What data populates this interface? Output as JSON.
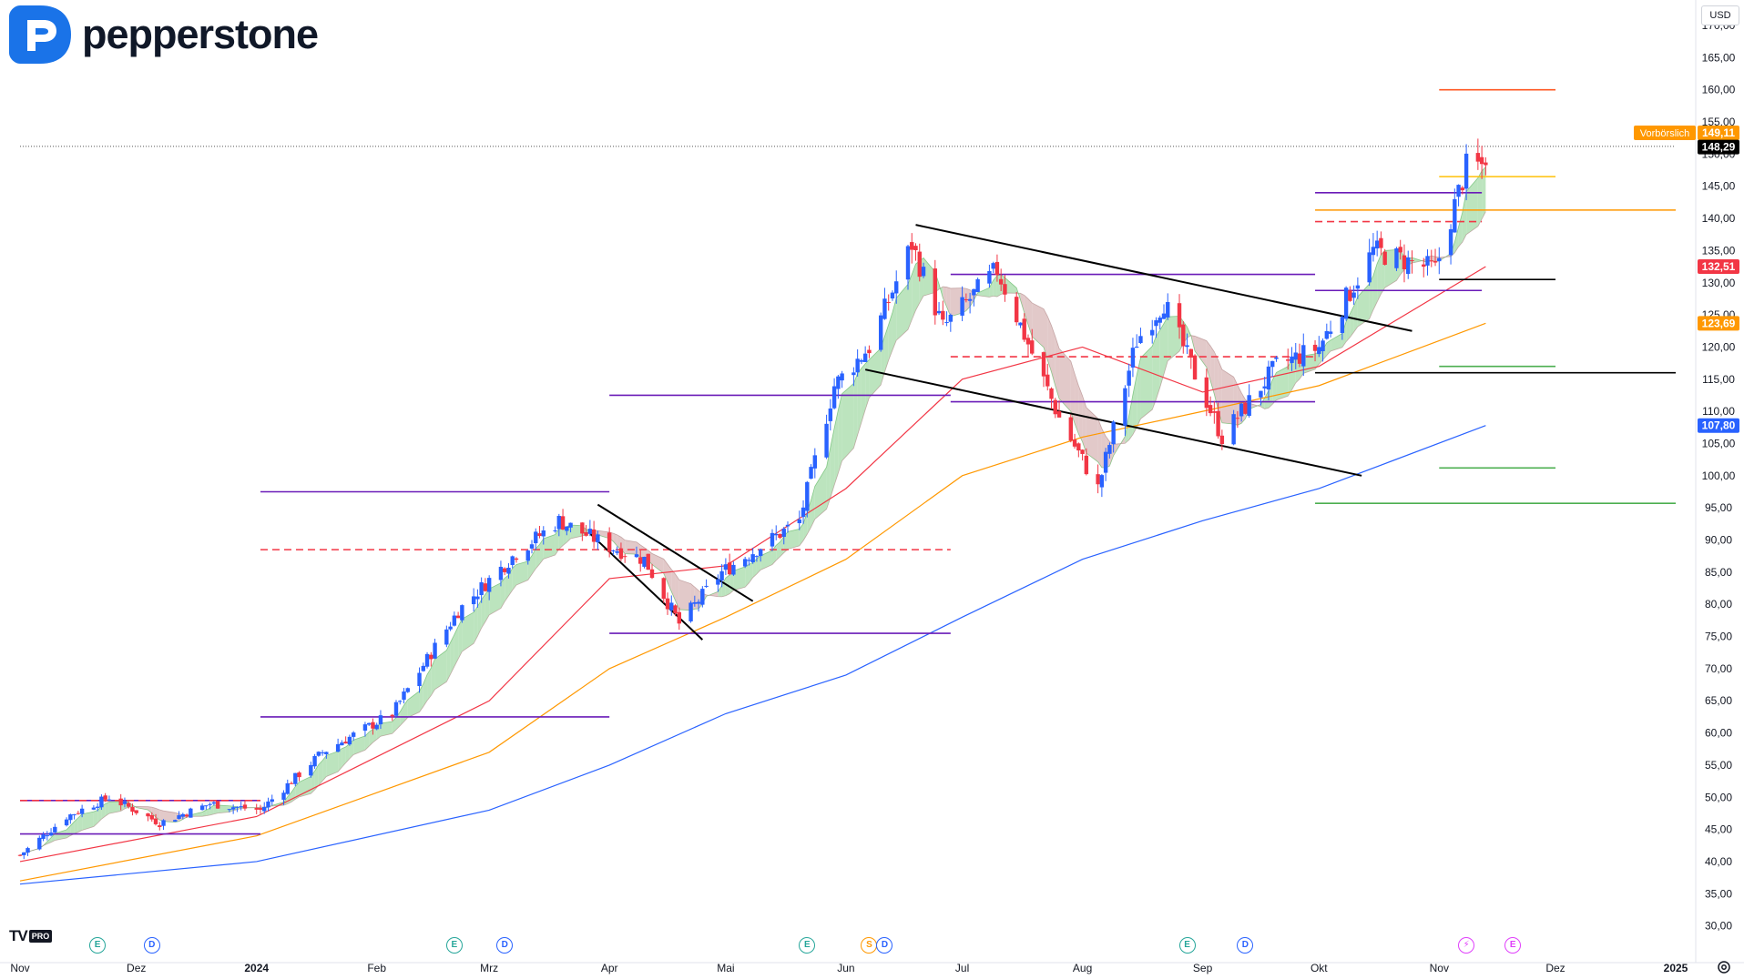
{
  "brand": {
    "name": "pepperstone",
    "logo_icon": "pepperstone-p-icon"
  },
  "currency": "USD",
  "tradingview_badge": {
    "mark": "TV",
    "label": "PRO"
  },
  "colors": {
    "up": "#2962ff",
    "down": "#f23645",
    "ema20": "#f23645",
    "ema50": "#ff9800",
    "ema200": "#2962ff",
    "cloud_up": "#a5dba8",
    "cloud_down": "#d8b7b7",
    "channel": "#6a1bb8",
    "trendline": "#000000",
    "prev_close_bg": "#ff9800",
    "last_bg": "#000000",
    "ema20_bg": "#f23645",
    "ema50_bg": "#ff9800",
    "ema200_bg": "#2962ff"
  },
  "price_labels": {
    "pre_market": {
      "caption": "Vorbörslich",
      "value": "149,11"
    },
    "last": "148,29",
    "ema20": "132,51",
    "ema50": "123,69",
    "ema200": "107,80"
  },
  "events": [
    {
      "type": "E",
      "date": "2023-11-21",
      "color": "#26a69a"
    },
    {
      "type": "D",
      "date": "2023-12-05",
      "color": "#2962ff"
    },
    {
      "type": "E",
      "date": "2024-02-21",
      "color": "#26a69a"
    },
    {
      "type": "D",
      "date": "2024-03-05",
      "color": "#2962ff"
    },
    {
      "type": "E",
      "date": "2024-05-22",
      "color": "#26a69a"
    },
    {
      "type": "S",
      "date": "2024-06-07",
      "color": "#ff9800"
    },
    {
      "type": "D",
      "date": "2024-06-11",
      "color": "#2962ff"
    },
    {
      "type": "E",
      "date": "2024-08-28",
      "color": "#26a69a"
    },
    {
      "type": "D",
      "date": "2024-09-12",
      "color": "#2962ff"
    },
    {
      "type": "⚡",
      "date": "2024-11-08",
      "color": "#e040fb"
    },
    {
      "type": "E",
      "date": "2024-11-20",
      "color": "#e040fb"
    }
  ],
  "chart_data": {
    "type": "candlestick",
    "title": "",
    "y_axis": {
      "position": "right",
      "min": 25,
      "max": 170,
      "tick_step": 5,
      "decimal_separator": ","
    },
    "x_axis": {
      "ticks": [
        {
          "label": "Nov",
          "date": "2023-11-01"
        },
        {
          "label": "Dez",
          "date": "2023-12-01"
        },
        {
          "label": "2024",
          "date": "2024-01-01",
          "bold": true
        },
        {
          "label": "Feb",
          "date": "2024-02-01"
        },
        {
          "label": "Mrz",
          "date": "2024-03-01"
        },
        {
          "label": "Apr",
          "date": "2024-04-01"
        },
        {
          "label": "Mai",
          "date": "2024-05-01"
        },
        {
          "label": "Jun",
          "date": "2024-06-01"
        },
        {
          "label": "Jul",
          "date": "2024-07-01"
        },
        {
          "label": "Aug",
          "date": "2024-08-01"
        },
        {
          "label": "Sep",
          "date": "2024-09-01"
        },
        {
          "label": "Okt",
          "date": "2024-10-01"
        },
        {
          "label": "Nov",
          "date": "2024-11-01"
        },
        {
          "label": "Dez",
          "date": "2024-12-01"
        },
        {
          "label": "2025",
          "date": "2025-01-01",
          "bold": true
        }
      ],
      "range": [
        "2023-11-01",
        "2025-01-02"
      ]
    },
    "price_anchors": [
      [
        "2023-11-01",
        41
      ],
      [
        "2023-11-13",
        47
      ],
      [
        "2023-11-24",
        50
      ],
      [
        "2023-12-07",
        46
      ],
      [
        "2023-12-20",
        49
      ],
      [
        "2024-01-02",
        48
      ],
      [
        "2024-01-18",
        57
      ],
      [
        "2024-02-05",
        63
      ],
      [
        "2024-02-22",
        79
      ],
      [
        "2024-03-08",
        88
      ],
      [
        "2024-03-19",
        93
      ],
      [
        "2024-04-01",
        89
      ],
      [
        "2024-04-10",
        87
      ],
      [
        "2024-04-19",
        77
      ],
      [
        "2024-04-30",
        85
      ],
      [
        "2024-05-20",
        93
      ],
      [
        "2024-05-29",
        114
      ],
      [
        "2024-06-07",
        120
      ],
      [
        "2024-06-18",
        136
      ],
      [
        "2024-06-26",
        123
      ],
      [
        "2024-07-10",
        132
      ],
      [
        "2024-07-26",
        109
      ],
      [
        "2024-08-05",
        98
      ],
      [
        "2024-08-15",
        121
      ],
      [
        "2024-08-22",
        127
      ],
      [
        "2024-09-06",
        106
      ],
      [
        "2024-09-20",
        117
      ],
      [
        "2024-10-01",
        120
      ],
      [
        "2024-10-15",
        135
      ],
      [
        "2024-10-31",
        132
      ],
      [
        "2024-11-08",
        148
      ],
      [
        "2024-11-13",
        148.29
      ]
    ],
    "ema": [
      {
        "name": "EMA 20",
        "color": "#f23645",
        "values": [
          [
            "2023-11-01",
            40
          ],
          [
            "2024-01-01",
            47
          ],
          [
            "2024-03-01",
            65
          ],
          [
            "2024-04-01",
            84
          ],
          [
            "2024-05-01",
            86
          ],
          [
            "2024-06-01",
            98
          ],
          [
            "2024-07-01",
            115
          ],
          [
            "2024-08-01",
            120
          ],
          [
            "2024-09-01",
            113
          ],
          [
            "2024-10-01",
            117
          ],
          [
            "2024-11-13",
            132.51
          ]
        ]
      },
      {
        "name": "EMA 50",
        "color": "#ff9800",
        "values": [
          [
            "2023-11-01",
            37
          ],
          [
            "2024-01-01",
            44
          ],
          [
            "2024-03-01",
            57
          ],
          [
            "2024-04-01",
            70
          ],
          [
            "2024-05-01",
            78
          ],
          [
            "2024-06-01",
            87
          ],
          [
            "2024-07-01",
            100
          ],
          [
            "2024-08-01",
            106
          ],
          [
            "2024-09-01",
            110
          ],
          [
            "2024-10-01",
            114
          ],
          [
            "2024-11-13",
            123.69
          ]
        ]
      },
      {
        "name": "EMA 200",
        "color": "#2962ff",
        "values": [
          [
            "2023-11-01",
            36.5
          ],
          [
            "2024-01-01",
            40
          ],
          [
            "2024-03-01",
            48
          ],
          [
            "2024-04-01",
            55
          ],
          [
            "2024-05-01",
            63
          ],
          [
            "2024-06-01",
            69
          ],
          [
            "2024-07-01",
            78
          ],
          [
            "2024-08-01",
            87
          ],
          [
            "2024-09-01",
            93
          ],
          [
            "2024-10-01",
            98
          ],
          [
            "2024-11-13",
            107.8
          ]
        ]
      }
    ],
    "horizontal_levels": [
      {
        "price": 49.5,
        "from": "2023-11-01",
        "to": "2024-01-02",
        "color": "#6a1bb8",
        "style": "solid"
      },
      {
        "price": 44.3,
        "from": "2023-11-01",
        "to": "2024-01-02",
        "color": "#6a1bb8",
        "style": "solid"
      },
      {
        "price": 49.5,
        "from": "2023-11-01",
        "to": "2024-01-02",
        "color": "#f23645",
        "style": "dashed"
      },
      {
        "price": 97.5,
        "from": "2024-01-02",
        "to": "2024-04-01",
        "color": "#6a1bb8",
        "style": "solid"
      },
      {
        "price": 62.5,
        "from": "2024-01-02",
        "to": "2024-04-01",
        "color": "#6a1bb8",
        "style": "solid"
      },
      {
        "price": 88.5,
        "from": "2024-01-02",
        "to": "2024-06-28",
        "color": "#f23645",
        "style": "dashed"
      },
      {
        "price": 112.5,
        "from": "2024-04-01",
        "to": "2024-06-28",
        "color": "#6a1bb8",
        "style": "solid"
      },
      {
        "price": 75.5,
        "from": "2024-04-01",
        "to": "2024-06-28",
        "color": "#6a1bb8",
        "style": "solid"
      },
      {
        "price": 131.3,
        "from": "2024-06-28",
        "to": "2024-09-30",
        "color": "#6a1bb8",
        "style": "solid"
      },
      {
        "price": 111.5,
        "from": "2024-06-28",
        "to": "2024-09-30",
        "color": "#6a1bb8",
        "style": "solid"
      },
      {
        "price": 118.5,
        "from": "2024-06-28",
        "to": "2024-09-30",
        "color": "#f23645",
        "style": "dashed"
      },
      {
        "price": 144,
        "from": "2024-09-30",
        "to": "2024-11-12",
        "color": "#6a1bb8",
        "style": "solid"
      },
      {
        "price": 128.8,
        "from": "2024-09-30",
        "to": "2024-11-12",
        "color": "#6a1bb8",
        "style": "solid"
      },
      {
        "price": 139.5,
        "from": "2024-09-30",
        "to": "2024-11-12",
        "color": "#f23645",
        "style": "dashed"
      },
      {
        "price": 160,
        "from": "2024-11-01",
        "to": "2024-12-01",
        "color": "#ff5722",
        "style": "solid"
      },
      {
        "price": 146.5,
        "from": "2024-11-01",
        "to": "2024-12-01",
        "color": "#ffc107",
        "style": "solid"
      },
      {
        "price": 141.3,
        "from": "2024-09-30",
        "to": "2025-01-01",
        "color": "#ff9800",
        "style": "solid"
      },
      {
        "price": 130.5,
        "from": "2024-11-01",
        "to": "2024-12-01",
        "color": "#000000",
        "style": "solid"
      },
      {
        "price": 116,
        "from": "2024-09-30",
        "to": "2025-01-01",
        "color": "#000000",
        "style": "solid"
      },
      {
        "price": 117,
        "from": "2024-11-01",
        "to": "2024-12-01",
        "color": "#4caf50",
        "style": "solid"
      },
      {
        "price": 101.2,
        "from": "2024-11-01",
        "to": "2024-12-01",
        "color": "#4caf50",
        "style": "solid"
      },
      {
        "price": 95.7,
        "from": "2024-09-30",
        "to": "2025-01-01",
        "color": "#4caf50",
        "style": "solid"
      },
      {
        "price": 151.2,
        "from": "2023-11-01",
        "to": "2025-01-01",
        "color": "#555555",
        "style": "dotted"
      }
    ],
    "trendlines": [
      {
        "from": [
          "2024-03-29",
          95.5
        ],
        "to": [
          "2024-05-08",
          80.5
        ]
      },
      {
        "from": [
          "2024-03-27",
          91
        ],
        "to": [
          "2024-04-25",
          74.5
        ]
      },
      {
        "from": [
          "2024-06-19",
          139
        ],
        "to": [
          "2024-10-25",
          122.5
        ]
      },
      {
        "from": [
          "2024-06-06",
          116.5
        ],
        "to": [
          "2024-10-12",
          100
        ]
      }
    ]
  }
}
